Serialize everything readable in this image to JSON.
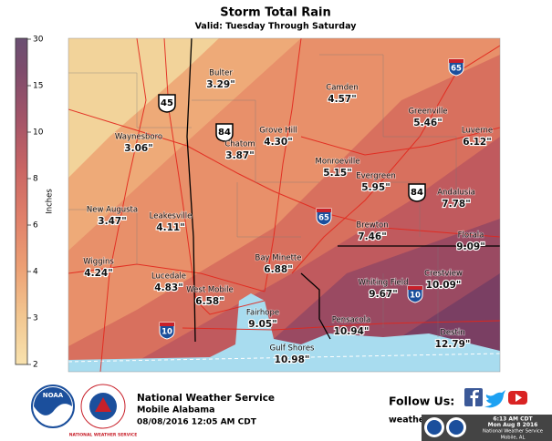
{
  "title": "Storm Total Rain",
  "subtitle": "Valid: Tuesday Through Saturday",
  "legend": {
    "label": "Inches",
    "ticks": [
      "30",
      "15",
      "10",
      "8",
      "6",
      "4",
      "3",
      "2"
    ]
  },
  "highways": [
    "45",
    "84",
    "65",
    "84",
    "65",
    "10",
    "10"
  ],
  "places": [
    {
      "name": "Bulter",
      "amount": "3.29\""
    },
    {
      "name": "Camden",
      "amount": "4.57\""
    },
    {
      "name": "Greenville",
      "amount": "5.46\""
    },
    {
      "name": "Luverne",
      "amount": "6.12\""
    },
    {
      "name": "Waynesboro",
      "amount": "3.06\""
    },
    {
      "name": "Grove Hill",
      "amount": "4.30\""
    },
    {
      "name": "Monroeville",
      "amount": "5.15\""
    },
    {
      "name": "Chatom",
      "amount": "3.87\""
    },
    {
      "name": "Evergreen",
      "amount": "5.95\""
    },
    {
      "name": "Andalusia",
      "amount": "7.78\""
    },
    {
      "name": "New Augusta",
      "amount": "3.47\""
    },
    {
      "name": "Leakesville",
      "amount": "4.11\""
    },
    {
      "name": "Brewton",
      "amount": "7.46\""
    },
    {
      "name": "Florala",
      "amount": "9.09\""
    },
    {
      "name": "Wiggins",
      "amount": "4.24\""
    },
    {
      "name": "Lucedale",
      "amount": "4.83\""
    },
    {
      "name": "Bay Minette",
      "amount": "6.88\""
    },
    {
      "name": "Whiting Field",
      "amount": "9.67\""
    },
    {
      "name": "Crestview",
      "amount": "10.09\""
    },
    {
      "name": "West Mobile",
      "amount": "6.58\""
    },
    {
      "name": "Fairhope",
      "amount": "9.05\""
    },
    {
      "name": "Pensacola",
      "amount": "10.94\""
    },
    {
      "name": "Gulf Shores",
      "amount": "10.98\""
    },
    {
      "name": "Destin",
      "amount": "12.79\""
    }
  ],
  "footer": {
    "office": "National Weather Service",
    "location": "Mobile Alabama",
    "issued": "08/08/2016 12:05 AM CDT",
    "follow": "Follow Us:",
    "url": "weather.gov/mob",
    "noaa": "NOAA",
    "nws_ring": "NATIONAL WEATHER SERVICE",
    "stamp": [
      "6:13 AM CDT",
      "Mon Aug 8 2016",
      "National Weather Service",
      "Mobile, AL"
    ]
  }
}
